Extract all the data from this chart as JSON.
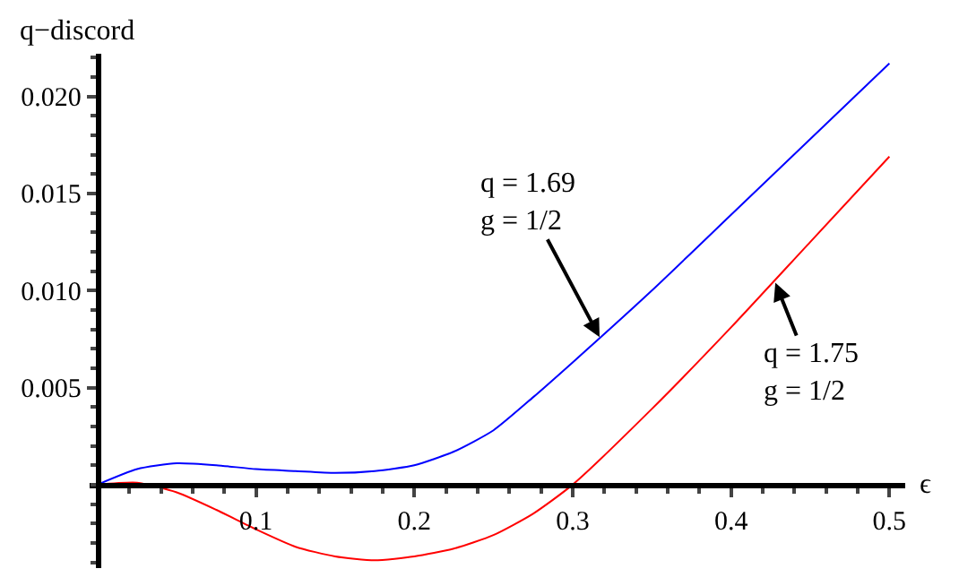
{
  "chart_data": {
    "type": "line",
    "xlabel": "ϵ",
    "ylabel": "q−discord",
    "x": [
      0,
      0.025,
      0.05,
      0.075,
      0.1,
      0.125,
      0.15,
      0.175,
      0.2,
      0.225,
      0.25,
      0.275,
      0.3,
      0.35,
      0.4,
      0.45,
      0.5
    ],
    "series": [
      {
        "color": "#0000ff",
        "values": [
          0,
          0.0008,
          0.0011,
          0.001,
          0.0008,
          0.0007,
          0.0006,
          0.0007,
          0.001,
          0.0017,
          0.0028,
          0.0045,
          0.0063,
          0.01,
          0.0139,
          0.0178,
          0.0217
        ]
      },
      {
        "color": "#ff0000",
        "values": [
          0,
          0.0001,
          -0.0004,
          -0.0013,
          -0.0023,
          -0.0032,
          -0.0037,
          -0.0039,
          -0.0037,
          -0.0033,
          -0.0026,
          -0.0015,
          0,
          0.0039,
          0.0081,
          0.0125,
          0.0169
        ]
      }
    ],
    "xlim": [
      -0.005,
      0.51
    ],
    "ylim": [
      -0.0043,
      0.0222
    ],
    "xticks": [
      0.1,
      0.2,
      0.3,
      0.4,
      0.5
    ],
    "yticks": [
      0.005,
      {
        "value": 0.01,
        "label": "0.010"
      },
      0.015,
      {
        "value": 0.02,
        "label": "0.020"
      }
    ],
    "annotations": [
      {
        "text": "q = 1.69\ng = 1/2",
        "x": 0.317,
        "y": 0.0076
      },
      {
        "text": "q = 1.75\ng = 1/2",
        "x": 0.428,
        "y": 0.0104
      }
    ],
    "marker": "none",
    "line_style": "solid"
  }
}
